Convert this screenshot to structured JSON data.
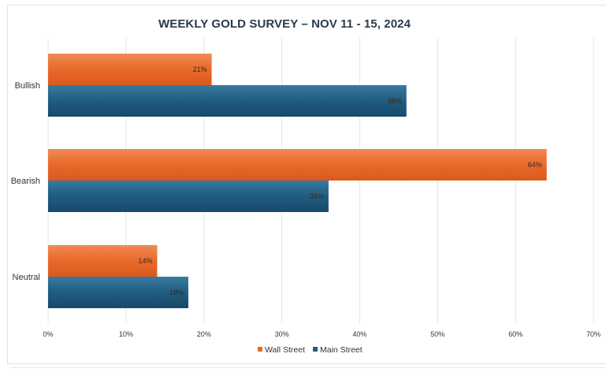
{
  "chart_data": {
    "type": "bar",
    "orientation": "horizontal",
    "title": "WEEKLY GOLD SURVEY – NOV 11 - 15, 2024",
    "categories": [
      "Bullish",
      "Bearish",
      "Neutral"
    ],
    "series": [
      {
        "name": "Wall Street",
        "values": [
          21,
          64,
          14
        ],
        "labels": [
          "21%",
          "64%",
          "14%"
        ],
        "color": "#e8692a"
      },
      {
        "name": "Main Street",
        "values": [
          46,
          36,
          18
        ],
        "labels": [
          "46%",
          "36%",
          "18%"
        ],
        "color": "#1f5c80"
      }
    ],
    "xlim": [
      0,
      70
    ],
    "xticks": [
      "0%",
      "10%",
      "20%",
      "30%",
      "40%",
      "50%",
      "60%",
      "70%"
    ],
    "grid": true,
    "legend": "bottom"
  }
}
